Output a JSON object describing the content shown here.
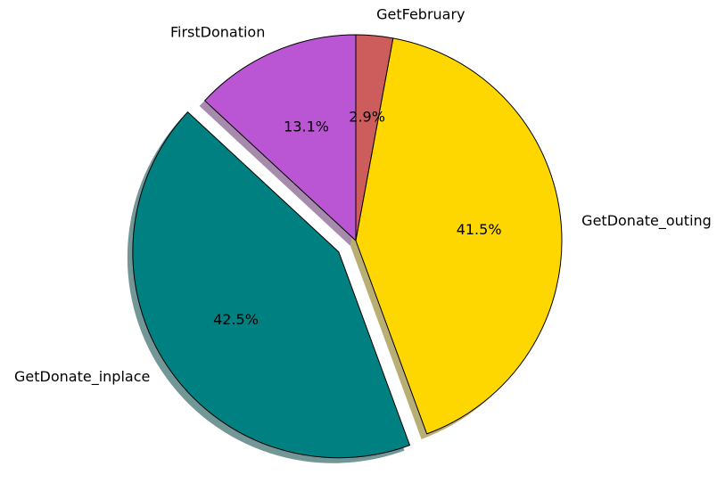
{
  "chart_data": {
    "type": "pie",
    "title": "",
    "start": "12 o'clock, clockwise",
    "shadow": true,
    "legend": "none",
    "slices": [
      {
        "label": "GetFebruary",
        "value": 2.9,
        "pct_text": "2.9%",
        "color": "#cd5c5c",
        "exploded": false
      },
      {
        "label": "GetDonate_outing",
        "value": 41.5,
        "pct_text": "41.5%",
        "color": "#ffd700",
        "exploded": false
      },
      {
        "label": "GetDonate_inplace",
        "value": 42.5,
        "pct_text": "42.5%",
        "color": "#008080",
        "exploded": true
      },
      {
        "label": "FirstDonation",
        "value": 13.1,
        "pct_text": "13.1%",
        "color": "#ba55d3",
        "exploded": false
      }
    ]
  }
}
